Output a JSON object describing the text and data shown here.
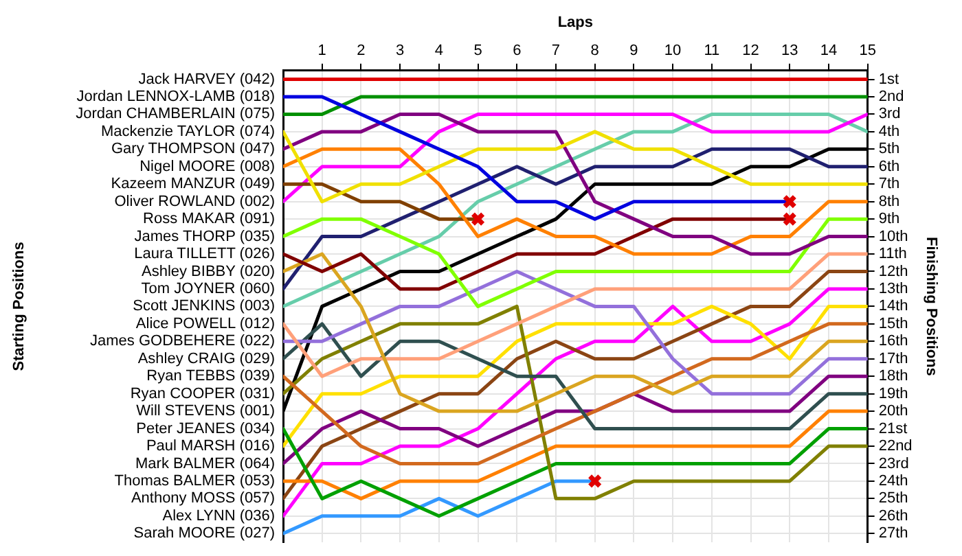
{
  "chart_data": {
    "type": "line",
    "xlabel": "Laps",
    "ylabel": "Finishing Positions",
    "x": [
      0,
      1,
      2,
      3,
      4,
      5,
      6,
      7,
      8,
      9,
      10,
      11,
      12,
      13,
      14,
      15
    ],
    "xlim": [
      0,
      15
    ],
    "xticks": [
      1,
      2,
      3,
      4,
      5,
      6,
      7,
      8,
      9,
      10,
      11,
      12,
      13,
      14,
      15
    ],
    "annotations": [
      "Starting Positions",
      "Ross MAKAR (091)"
    ],
    "ylim": [
      27.5,
      0.5
    ],
    "yticks": [
      {
        "value": 1,
        "label": "1st"
      },
      {
        "value": 2,
        "label": "2nd"
      },
      {
        "value": 3,
        "label": "3rd"
      },
      {
        "value": 4,
        "label": "4th"
      },
      {
        "value": 5,
        "label": "5th"
      },
      {
        "value": 6,
        "label": "6th"
      },
      {
        "value": 7,
        "label": "7th"
      },
      {
        "value": 8,
        "label": "8th"
      },
      {
        "value": 9,
        "label": "9th"
      },
      {
        "value": 10,
        "label": "10th"
      },
      {
        "value": 11,
        "label": "11th"
      },
      {
        "value": 12,
        "label": "12th"
      },
      {
        "value": 13,
        "label": "13th"
      },
      {
        "value": 14,
        "label": "14th"
      },
      {
        "value": 15,
        "label": "15th"
      },
      {
        "value": 16,
        "label": "16th"
      },
      {
        "value": 17,
        "label": "17th"
      },
      {
        "value": 18,
        "label": "18th"
      },
      {
        "value": 19,
        "label": "19th"
      },
      {
        "value": 20,
        "label": "20th"
      },
      {
        "value": 21,
        "label": "21st"
      },
      {
        "value": 22,
        "label": "22nd"
      },
      {
        "value": 23,
        "label": "23rd"
      },
      {
        "value": 24,
        "label": "24th"
      },
      {
        "value": 25,
        "label": "25th"
      },
      {
        "value": 26,
        "label": "26th"
      },
      {
        "value": 27,
        "label": "27th"
      }
    ],
    "grid": true,
    "marker": "none",
    "line_style": "solid",
    "series": [
      {
        "name": "Jack HARVEY (042)",
        "color": "#e00000",
        "values": [
          1,
          1,
          1,
          1,
          1,
          1,
          1,
          1,
          1,
          1,
          1,
          1,
          1,
          1,
          1,
          1
        ]
      },
      {
        "name": "Jordan LENNOX-LAMB (018)",
        "color": "#0000e0",
        "values": [
          2,
          2,
          3,
          4,
          5,
          6,
          8,
          8,
          9,
          8,
          8,
          8,
          8,
          8,
          null,
          null
        ]
      },
      {
        "name": "Jordan CHAMBERLAIN (075)",
        "color": "#009000",
        "values": [
          3,
          3,
          2,
          2,
          2,
          2,
          2,
          2,
          2,
          2,
          2,
          2,
          2,
          2,
          2,
          2
        ]
      },
      {
        "name": "Mackenzie TAYLOR (074)",
        "color": "#f0e000",
        "values": [
          4,
          8,
          7,
          7,
          6,
          5,
          5,
          5,
          4,
          5,
          5,
          6,
          7,
          7,
          7,
          7
        ]
      },
      {
        "name": "Gary THOMPSON (047)",
        "color": "#800080",
        "values": [
          5,
          4,
          4,
          3,
          3,
          4,
          4,
          4,
          8,
          9,
          10,
          10,
          11,
          11,
          10,
          10
        ]
      },
      {
        "name": "Nigel MOORE (008)",
        "color": "#ff8000",
        "values": [
          6,
          5,
          5,
          5,
          7,
          10,
          9,
          10,
          10,
          11,
          11,
          11,
          10,
          10,
          8,
          8
        ]
      },
      {
        "name": "Kazeem MANZUR (049)",
        "color": "#804000",
        "values": [
          7,
          7,
          8,
          8,
          9,
          9,
          null,
          null,
          null,
          null,
          null,
          null,
          null,
          null,
          null,
          null
        ]
      },
      {
        "name": "Oliver ROWLAND (002)",
        "color": "#ff00ff",
        "values": [
          8,
          6,
          6,
          6,
          4,
          3,
          3,
          3,
          3,
          3,
          3,
          4,
          4,
          4,
          4,
          3
        ]
      },
      {
        "name": "James THORP (035)",
        "color": "#80ff00",
        "values": [
          10,
          9,
          9,
          10,
          11,
          14,
          13,
          12,
          12,
          12,
          12,
          12,
          12,
          12,
          9,
          9
        ]
      },
      {
        "name": "Laura TILLETT (026)",
        "color": "#800000",
        "values": [
          11,
          12,
          11,
          13,
          13,
          12,
          11,
          11,
          11,
          10,
          9,
          9,
          9,
          9,
          null,
          null
        ]
      },
      {
        "name": "Ashley BIBBY (020)",
        "color": "#daa520",
        "values": [
          12,
          11,
          14,
          19,
          20,
          20,
          20,
          19,
          18,
          18,
          19,
          18,
          18,
          18,
          16,
          16
        ]
      },
      {
        "name": "Tom JOYNER (060)",
        "color": "#202070",
        "values": [
          13,
          10,
          10,
          9,
          8,
          7,
          6,
          7,
          6,
          6,
          6,
          5,
          5,
          5,
          6,
          6
        ]
      },
      {
        "name": "Scott JENKINS (003)",
        "color": "#66cdaa",
        "values": [
          14,
          13,
          12,
          11,
          10,
          8,
          7,
          6,
          5,
          4,
          4,
          3,
          3,
          3,
          3,
          4
        ]
      },
      {
        "name": "Alice POWELL (012)",
        "color": "#ffa07a",
        "values": [
          15,
          18,
          17,
          17,
          17,
          16,
          15,
          14,
          13,
          13,
          13,
          13,
          13,
          13,
          11,
          11
        ]
      },
      {
        "name": "James GODBEHERE (022)",
        "color": "#9370db",
        "values": [
          16,
          16,
          15,
          14,
          14,
          13,
          12,
          13,
          14,
          14,
          17,
          19,
          19,
          19,
          17,
          17
        ]
      },
      {
        "name": "Ashley CRAIG (029)",
        "color": "#2f4f4f",
        "values": [
          17,
          15,
          18,
          16,
          16,
          17,
          18,
          18,
          21,
          21,
          21,
          21,
          21,
          21,
          19,
          19
        ]
      },
      {
        "name": "Ryan TEBBS (039)",
        "color": "#d2691e",
        "values": [
          18,
          20,
          22,
          23,
          23,
          23,
          22,
          21,
          20,
          19,
          18,
          17,
          17,
          16,
          15,
          15
        ]
      },
      {
        "name": "Ryan COOPER (031)",
        "color": "#808000",
        "values": [
          19,
          17,
          16,
          15,
          15,
          15,
          14,
          25,
          25,
          24,
          24,
          24,
          24,
          24,
          22,
          22
        ]
      },
      {
        "name": "Will STEVENS (001)",
        "color": "#000000",
        "values": [
          20,
          14,
          13,
          12,
          12,
          11,
          10,
          9,
          7,
          7,
          7,
          7,
          6,
          6,
          5,
          5
        ]
      },
      {
        "name": "Peter JEANES (034)",
        "color": "#00a000",
        "values": [
          21,
          25,
          24,
          25,
          26,
          25,
          24,
          23,
          23,
          23,
          23,
          23,
          23,
          23,
          21,
          21
        ]
      },
      {
        "name": "Paul MARSH (016)",
        "color": "#ffe000",
        "values": [
          22,
          19,
          19,
          18,
          18,
          18,
          16,
          15,
          15,
          15,
          15,
          14,
          15,
          17,
          14,
          14
        ]
      },
      {
        "name": "Mark BALMER (064)",
        "color": "#800080",
        "values": [
          23,
          21,
          20,
          21,
          21,
          22,
          21,
          20,
          20,
          19,
          20,
          20,
          20,
          20,
          18,
          18
        ]
      },
      {
        "name": "Thomas BALMER (053)",
        "color": "#ff8000",
        "values": [
          24,
          24,
          25,
          24,
          24,
          24,
          23,
          22,
          22,
          22,
          22,
          22,
          22,
          22,
          20,
          20
        ]
      },
      {
        "name": "Anthony MOSS (057)",
        "color": "#8b4513",
        "values": [
          25,
          22,
          21,
          20,
          19,
          19,
          17,
          16,
          17,
          17,
          16,
          15,
          14,
          14,
          12,
          12
        ]
      },
      {
        "name": "Alex LYNN (036)",
        "color": "#ff00ff",
        "values": [
          26,
          23,
          23,
          22,
          22,
          21,
          19,
          17,
          16,
          16,
          14,
          16,
          16,
          15,
          13,
          13
        ]
      },
      {
        "name": "Sarah MOORE (027)",
        "color": "#3399ff",
        "values": [
          27,
          26,
          26,
          26,
          25,
          26,
          25,
          24,
          24,
          null,
          null,
          null,
          null,
          null,
          null,
          null
        ]
      },
      {
        "type": "scatter",
        "marker": "cross",
        "color": "#e00000",
        "x": [
          5,
          8,
          13,
          13
        ],
        "values": [
          9,
          24,
          8,
          9
        ]
      }
    ],
    "legend": false
  }
}
